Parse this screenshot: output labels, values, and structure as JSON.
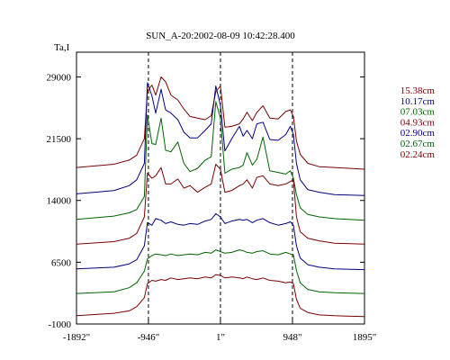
{
  "chart_data": {
    "type": "line",
    "title": "SUN_A-20:2002-08-09 10:42:28.400",
    "ylabel": "Ta,I",
    "xlabel": "",
    "xlim": [
      -1892,
      1895
    ],
    "ylim": [
      -1000,
      32000
    ],
    "x_ticks": [
      {
        "value": -1892,
        "label": "-1892\""
      },
      {
        "value": -946,
        "label": "-946\""
      },
      {
        "value": 1,
        "label": "1\""
      },
      {
        "value": 948,
        "label": "948\""
      },
      {
        "value": 1895,
        "label": "1895\""
      }
    ],
    "y_ticks": [
      {
        "value": 29000,
        "label": "29000"
      },
      {
        "value": 21500,
        "label": "21500"
      },
      {
        "value": 14000,
        "label": "14000"
      },
      {
        "value": 6500,
        "label": "6500"
      },
      {
        "value": -1000,
        "label": "-1000"
      }
    ],
    "vlines": [
      -946,
      1,
      948
    ],
    "grid": false,
    "legend_position": "right",
    "series": [
      {
        "name": "15.38cm",
        "color": "#7a0000",
        "x": [
          -1892,
          -1400,
          -1200,
          -1100,
          -1000,
          -960,
          -900,
          -850,
          -780,
          -720,
          -650,
          -560,
          -480,
          -400,
          -300,
          -200,
          -120,
          -60,
          0,
          60,
          150,
          250,
          300,
          350,
          420,
          480,
          560,
          650,
          760,
          860,
          920,
          960,
          1000,
          1050,
          1150,
          1300,
          1500,
          1895
        ],
        "y": [
          18000,
          18400,
          18900,
          19500,
          21500,
          27300,
          28000,
          26800,
          29000,
          28400,
          26800,
          26200,
          25100,
          24200,
          24000,
          23800,
          24300,
          27200,
          27900,
          22900,
          23000,
          23300,
          23900,
          24700,
          23700,
          24700,
          25500,
          24000,
          23900,
          24800,
          25000,
          24200,
          21200,
          19600,
          18500,
          18100,
          18000,
          17800
        ]
      },
      {
        "name": "10.17cm",
        "color": "#000080",
        "x": [
          -1892,
          -1400,
          -1200,
          -1100,
          -1000,
          -960,
          -900,
          -850,
          -780,
          -720,
          -650,
          -560,
          -480,
          -400,
          -300,
          -200,
          -120,
          -60,
          0,
          60,
          150,
          250,
          300,
          350,
          420,
          480,
          560,
          650,
          760,
          860,
          920,
          960,
          1000,
          1050,
          1150,
          1300,
          1500,
          1895
        ],
        "y": [
          14800,
          15200,
          15800,
          16500,
          18500,
          28300,
          26700,
          24600,
          27500,
          25000,
          24600,
          23800,
          22300,
          21600,
          21600,
          22500,
          23300,
          27900,
          25600,
          20000,
          21500,
          23000,
          21800,
          22500,
          21500,
          23300,
          23500,
          21400,
          21300,
          22000,
          23000,
          22000,
          18500,
          16500,
          15300,
          15000,
          14700,
          14600
        ]
      },
      {
        "name": "07.03cm",
        "color": "#006400",
        "x": [
          -1892,
          -1400,
          -1200,
          -1100,
          -1000,
          -960,
          -900,
          -850,
          -780,
          -720,
          -650,
          -560,
          -480,
          -400,
          -300,
          -200,
          -120,
          -60,
          0,
          60,
          150,
          250,
          300,
          350,
          420,
          480,
          560,
          650,
          760,
          860,
          920,
          960,
          1000,
          1050,
          1150,
          1300,
          1500,
          1895
        ],
        "y": [
          11700,
          12100,
          12500,
          12900,
          14500,
          24400,
          20900,
          20800,
          24000,
          20100,
          19900,
          21100,
          18500,
          17500,
          17900,
          18900,
          19300,
          26000,
          24000,
          17300,
          17800,
          18000,
          18300,
          19800,
          18300,
          19000,
          21700,
          17600,
          17400,
          17200,
          17600,
          16700,
          14700,
          13100,
          12300,
          12000,
          11800,
          11600
        ]
      },
      {
        "name": "04.93cm",
        "color": "#7a0000",
        "x": [
          -1892,
          -1400,
          -1200,
          -1100,
          -1000,
          -960,
          -900,
          -850,
          -780,
          -720,
          -650,
          -560,
          -480,
          -400,
          -300,
          -200,
          -120,
          -60,
          0,
          60,
          150,
          250,
          300,
          350,
          420,
          480,
          560,
          650,
          760,
          860,
          920,
          960,
          1000,
          1050,
          1150,
          1300,
          1500,
          1895
        ],
        "y": [
          8700,
          9000,
          9400,
          10000,
          12000,
          17300,
          16700,
          17000,
          18000,
          16000,
          16000,
          16600,
          15500,
          15800,
          15000,
          15600,
          16000,
          18400,
          17800,
          15000,
          15200,
          15800,
          16000,
          16500,
          15500,
          16800,
          17000,
          16000,
          15800,
          16000,
          16300,
          16500,
          12000,
          10200,
          9400,
          9100,
          8800,
          8700
        ]
      },
      {
        "name": "02.90cm",
        "color": "#000080",
        "x": [
          -1892,
          -1400,
          -1200,
          -1100,
          -1000,
          -960,
          -900,
          -850,
          -780,
          -720,
          -650,
          -560,
          -480,
          -400,
          -300,
          -200,
          -120,
          -60,
          0,
          60,
          150,
          250,
          300,
          350,
          420,
          480,
          560,
          650,
          760,
          860,
          920,
          960,
          1000,
          1050,
          1150,
          1300,
          1500,
          1895
        ],
        "y": [
          5700,
          5900,
          6300,
          6800,
          8500,
          11300,
          11000,
          11800,
          11600,
          11200,
          11400,
          11100,
          11000,
          11200,
          11100,
          11500,
          11700,
          12400,
          12000,
          11200,
          11500,
          11700,
          11600,
          11700,
          11300,
          11600,
          11800,
          11300,
          11000,
          11200,
          11400,
          11000,
          8500,
          7000,
          6200,
          5900,
          5700,
          5600
        ]
      },
      {
        "name": "02.67cm",
        "color": "#006400",
        "x": [
          -1892,
          -1400,
          -1200,
          -1100,
          -1000,
          -960,
          -900,
          -850,
          -780,
          -720,
          -650,
          -560,
          -480,
          -400,
          -300,
          -200,
          -120,
          -60,
          0,
          60,
          150,
          250,
          300,
          350,
          420,
          480,
          560,
          650,
          760,
          860,
          920,
          960,
          1000,
          1050,
          1150,
          1300,
          1500,
          1895
        ],
        "y": [
          2700,
          2900,
          3400,
          4000,
          5400,
          6900,
          7300,
          7500,
          7400,
          7300,
          7500,
          7300,
          7400,
          7500,
          7400,
          7700,
          7600,
          8000,
          7800,
          7600,
          7700,
          8000,
          7900,
          7700,
          7600,
          7800,
          7900,
          7500,
          7400,
          7700,
          7500,
          7400,
          5500,
          4000,
          3200,
          2900,
          2800,
          2700
        ]
      },
      {
        "name": "02.24cm",
        "color": "#7a0000",
        "x": [
          -1892,
          -1400,
          -1200,
          -1100,
          -1000,
          -960,
          -900,
          -850,
          -780,
          -720,
          -650,
          -560,
          -480,
          -400,
          -300,
          -200,
          -120,
          -60,
          0,
          60,
          150,
          250,
          300,
          350,
          420,
          480,
          560,
          650,
          760,
          860,
          920,
          960,
          1000,
          1050,
          1150,
          1300,
          1500,
          1895
        ],
        "y": [
          0,
          300,
          600,
          1100,
          2200,
          3900,
          4300,
          4200,
          4400,
          4300,
          4600,
          4400,
          4500,
          4600,
          4500,
          4700,
          4600,
          5000,
          4900,
          4600,
          4700,
          4600,
          4500,
          4700,
          4500,
          4400,
          4600,
          4300,
          4200,
          4000,
          4100,
          3900,
          2000,
          900,
          400,
          100,
          0,
          -100
        ]
      }
    ]
  }
}
